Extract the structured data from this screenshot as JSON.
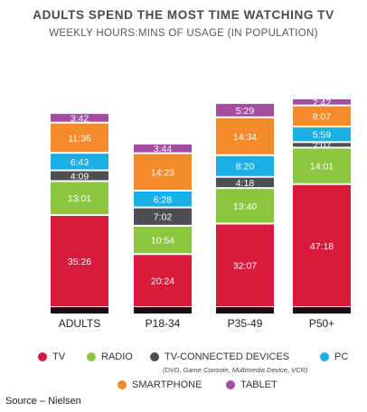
{
  "title": "ADULTS SPEND THE MOST TIME WATCHING TV",
  "subtitle": "WEEKLY HOURS:MINS OF USAGE (IN POPULATION)",
  "source": "Source – Nielsen",
  "legend_note": "(DVD, Game Console, Multimedia Device, VCR)",
  "colors": {
    "TV": "#d91a3d",
    "RADIO": "#8cc63f",
    "TV-CONNECTED DEVICES": "#4d4d54",
    "PC": "#1ab0e6",
    "SMARTPHONE": "#f58a2a",
    "TABLET": "#a54ea0",
    "base": "#111111"
  },
  "legend": [
    {
      "label": "TV",
      "icon": "tv-legend-dot"
    },
    {
      "label": "RADIO",
      "icon": "radio-legend-dot"
    },
    {
      "label": "TV-CONNECTED DEVICES",
      "icon": "tv-connected-devices-legend-dot"
    },
    {
      "label": "PC",
      "icon": "pc-legend-dot"
    },
    {
      "label": "SMARTPHONE",
      "icon": "smartphone-legend-dot"
    },
    {
      "label": "TABLET",
      "icon": "tablet-legend-dot"
    }
  ],
  "chart_data": {
    "type": "bar",
    "stacked": true,
    "title": "ADULTS SPEND THE MOST TIME WATCHING TV",
    "subtitle": "WEEKLY HOURS:MINS OF USAGE (IN POPULATION)",
    "categories": [
      "ADULTS",
      "P18-34",
      "P35-49",
      "P50+"
    ],
    "legend_position": "bottom",
    "grid": false,
    "series": [
      {
        "name": "TV",
        "labels": [
          "35:26",
          "20:24",
          "32:07",
          "47:18"
        ],
        "values": [
          35.43,
          20.4,
          32.12,
          47.3
        ]
      },
      {
        "name": "RADIO",
        "labels": [
          "13:01",
          "10:54",
          "13:40",
          "14:01"
        ],
        "values": [
          13.02,
          10.9,
          13.67,
          14.02
        ]
      },
      {
        "name": "TV-CONNECTED DEVICES",
        "labels": [
          "4:09",
          "7:02",
          "4:18",
          "2:07"
        ],
        "values": [
          4.15,
          7.03,
          4.3,
          2.12
        ]
      },
      {
        "name": "PC",
        "labels": [
          "6:43",
          "6:28",
          "8:20",
          "5:59"
        ],
        "values": [
          6.72,
          6.47,
          8.33,
          5.98
        ]
      },
      {
        "name": "SMARTPHONE",
        "labels": [
          "11:36",
          "14:23",
          "14:34",
          "8:07"
        ],
        "values": [
          11.6,
          14.38,
          14.57,
          8.12
        ]
      },
      {
        "name": "TABLET",
        "labels": [
          "3:42",
          "3:44",
          "5:29",
          "2:42"
        ],
        "values": [
          3.7,
          3.73,
          5.48,
          2.7
        ]
      }
    ]
  }
}
